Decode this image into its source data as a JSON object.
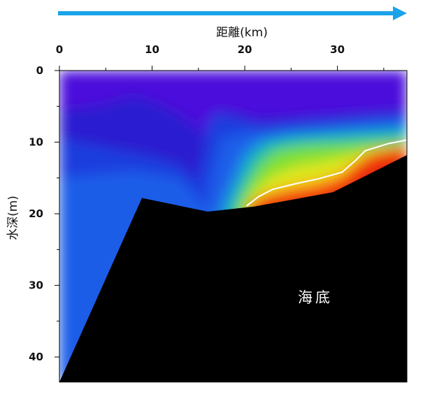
{
  "chart_data": {
    "type": "heatmap",
    "title": "",
    "xlabel": "距離(km)",
    "ylabel": "水深(m)",
    "xlim": [
      0,
      37.5
    ],
    "ylim": [
      0,
      43.5
    ],
    "x_ticks": [
      0,
      10,
      20,
      30
    ],
    "y_ticks": [
      0,
      10,
      20,
      30,
      40
    ],
    "x_tick_labels": [
      "0",
      "10",
      "20",
      "30"
    ],
    "y_tick_labels": [
      "0",
      "10",
      "20",
      "30",
      "40"
    ],
    "x_axis_position": "top",
    "y_inverted": true,
    "grid": false,
    "legend": "none",
    "direction_arrow": {
      "direction": "right",
      "color": "#1aa3e8"
    },
    "seabed": {
      "label": "海底",
      "color": "#000000",
      "profile": [
        {
          "x": 0.0,
          "depth": 43.5
        },
        {
          "x": 8.9,
          "depth": 17.8
        },
        {
          "x": 16.0,
          "depth": 19.7
        },
        {
          "x": 21.0,
          "depth": 19.0
        },
        {
          "x": 29.5,
          "depth": 17.0
        },
        {
          "x": 37.5,
          "depth": 11.8
        }
      ]
    },
    "contour": {
      "color": "#ffffff",
      "points": [
        {
          "x": 20.2,
          "depth": 18.9
        },
        {
          "x": 21.5,
          "depth": 17.6
        },
        {
          "x": 23.0,
          "depth": 16.6
        },
        {
          "x": 25.5,
          "depth": 15.8
        },
        {
          "x": 28.0,
          "depth": 15.1
        },
        {
          "x": 30.5,
          "depth": 14.2
        },
        {
          "x": 32.0,
          "depth": 12.5
        },
        {
          "x": 33.0,
          "depth": 11.2
        },
        {
          "x": 35.5,
          "depth": 10.2
        },
        {
          "x": 37.5,
          "depth": 9.7
        }
      ]
    },
    "field_layers": [
      {
        "color": "#4b0edb",
        "points": [
          [
            0,
            0
          ],
          [
            37.5,
            0
          ],
          [
            37.5,
            43.5
          ],
          [
            0,
            43.5
          ]
        ]
      },
      {
        "color": "#2a1fd0",
        "points": [
          [
            0,
            5.5
          ],
          [
            4,
            5
          ],
          [
            8,
            3.5
          ],
          [
            11,
            4.8
          ],
          [
            14,
            7
          ],
          [
            16,
            9.5
          ],
          [
            18,
            5.5
          ],
          [
            21,
            6.8
          ],
          [
            25,
            6.6
          ],
          [
            30,
            6.2
          ],
          [
            35,
            5.8
          ],
          [
            37.5,
            5.6
          ],
          [
            37.5,
            43.5
          ],
          [
            0,
            43.5
          ]
        ]
      },
      {
        "color": "#1a3ede",
        "points": [
          [
            0,
            9.5
          ],
          [
            6,
            11
          ],
          [
            10,
            12
          ],
          [
            13,
            13.2
          ],
          [
            14.8,
            15.5
          ],
          [
            15.5,
            12
          ],
          [
            16,
            7.2
          ],
          [
            17,
            5.8
          ],
          [
            18.8,
            6.6
          ],
          [
            22,
            7.8
          ],
          [
            26,
            7.2
          ],
          [
            30,
            6.8
          ],
          [
            34,
            6.3
          ],
          [
            37.5,
            6.0
          ],
          [
            37.5,
            43.5
          ],
          [
            0,
            43.5
          ]
        ]
      },
      {
        "color": "#1a5de8",
        "points": [
          [
            0,
            15
          ],
          [
            8,
            14
          ],
          [
            13,
            15
          ],
          [
            15.8,
            19
          ],
          [
            16.4,
            14.5
          ],
          [
            17.4,
            9.5
          ],
          [
            19.5,
            8.6
          ],
          [
            23,
            8.2
          ],
          [
            27,
            7.8
          ],
          [
            31,
            7.4
          ],
          [
            35,
            7.0
          ],
          [
            37.5,
            6.8
          ],
          [
            37.5,
            43.5
          ],
          [
            0,
            43.5
          ]
        ]
      },
      {
        "color": "#1890e0",
        "points": [
          [
            17.2,
            19.3
          ],
          [
            18.2,
            16.2
          ],
          [
            19.6,
            11.6
          ],
          [
            21.2,
            9.8
          ],
          [
            24,
            9.0
          ],
          [
            28,
            8.6
          ],
          [
            32,
            8.2
          ],
          [
            37.5,
            7.8
          ],
          [
            37.5,
            43.5
          ],
          [
            17.2,
            43.5
          ]
        ]
      },
      {
        "color": "#22c49e",
        "points": [
          [
            18.2,
            19.3
          ],
          [
            19.2,
            16.2
          ],
          [
            20.6,
            12.4
          ],
          [
            22.2,
            10.3
          ],
          [
            25.2,
            9.5
          ],
          [
            29,
            9.2
          ],
          [
            33,
            8.9
          ],
          [
            37.5,
            8.6
          ],
          [
            37.5,
            43.5
          ],
          [
            18.2,
            43.5
          ]
        ]
      },
      {
        "color": "#7ee033",
        "points": [
          [
            19.2,
            19.2
          ],
          [
            20.2,
            16.3
          ],
          [
            21.6,
            13.3
          ],
          [
            23.4,
            11.3
          ],
          [
            26.5,
            10.6
          ],
          [
            30,
            10.4
          ],
          [
            34,
            10.1
          ],
          [
            37.5,
            9.8
          ],
          [
            37.5,
            43.5
          ],
          [
            19.2,
            43.5
          ]
        ]
      },
      {
        "color": "#dfe61c",
        "points": [
          [
            20,
            19.1
          ],
          [
            21.3,
            16.5
          ],
          [
            23,
            14.6
          ],
          [
            25.5,
            13.3
          ],
          [
            28.5,
            12.6
          ],
          [
            31.5,
            11.8
          ],
          [
            34,
            11.0
          ],
          [
            37.5,
            10.5
          ],
          [
            37.5,
            43.5
          ],
          [
            20,
            43.5
          ]
        ]
      },
      {
        "color": "#ff8a12",
        "points": [
          [
            20.3,
            18.8
          ],
          [
            22,
            17.3
          ],
          [
            24.5,
            16.3
          ],
          [
            27.5,
            15.5
          ],
          [
            30.4,
            14.4
          ],
          [
            32,
            12.7
          ],
          [
            33.5,
            11.4
          ],
          [
            37.5,
            10.4
          ],
          [
            37.5,
            43.5
          ],
          [
            20.3,
            43.5
          ]
        ]
      },
      {
        "color": "#ec2a10",
        "points": [
          [
            20.6,
            18.9
          ],
          [
            22.2,
            17.9
          ],
          [
            25,
            17.2
          ],
          [
            28,
            16.6
          ],
          [
            30.5,
            15.4
          ],
          [
            32.2,
            13.3
          ],
          [
            34,
            11.9
          ],
          [
            37.5,
            11.0
          ],
          [
            37.5,
            43.5
          ],
          [
            20.6,
            43.5
          ]
        ]
      }
    ]
  }
}
